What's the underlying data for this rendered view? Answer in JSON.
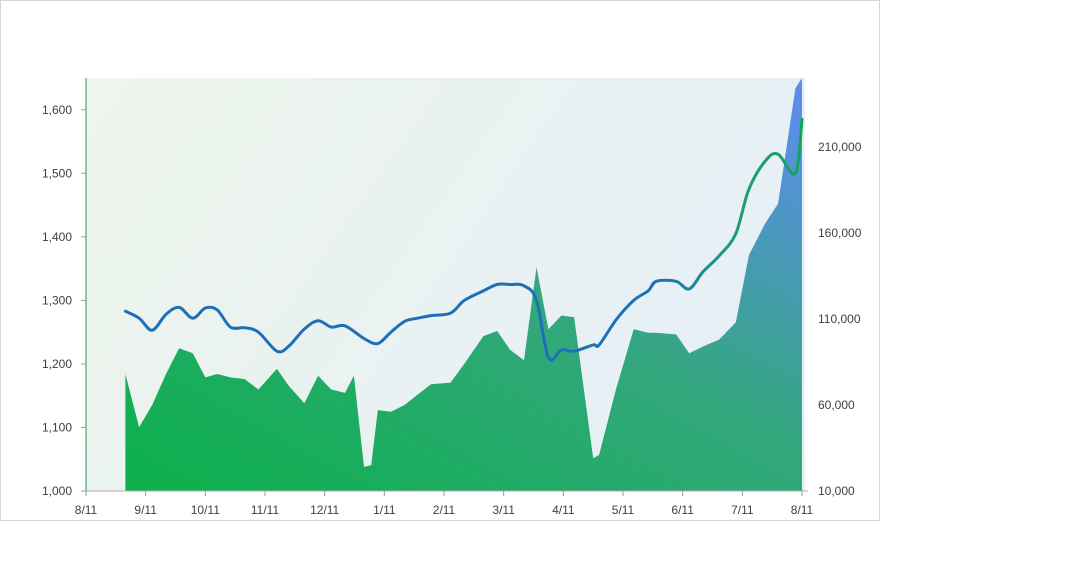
{
  "chart_data": {
    "type": "area",
    "title": "",
    "xlabel": "",
    "ylabel": "",
    "x_ticks": [
      "8/11",
      "9/11",
      "10/11",
      "11/11",
      "12/11",
      "1/11",
      "2/11",
      "3/11",
      "4/11",
      "5/11",
      "6/11",
      "7/11",
      "8/11"
    ],
    "y_left": {
      "min": 1000,
      "max": 1650,
      "ticks": [
        1000,
        1100,
        1200,
        1300,
        1400,
        1500,
        1600
      ],
      "tick_labels": [
        "1,000",
        "1,100",
        "1,200",
        "1,300",
        "1,400",
        "1,500",
        "1,600"
      ]
    },
    "y_right": {
      "min": 10000,
      "max": 250000,
      "ticks": [
        10000,
        60000,
        110000,
        160000,
        210000
      ],
      "tick_labels": [
        "10,000",
        "60,000",
        "110,000",
        "160,000",
        "210,000"
      ]
    },
    "grid": false,
    "series": [
      {
        "kind": "area",
        "axis": "right",
        "x": [
          0.66,
          0.89,
          1.11,
          1.34,
          1.56,
          1.79,
          2.0,
          2.2,
          2.42,
          2.66,
          2.89,
          3.2,
          3.4,
          3.66,
          3.89,
          4.11,
          4.34,
          4.49,
          4.66,
          4.78,
          4.89,
          5.11,
          5.34,
          5.56,
          5.78,
          6.11,
          6.34,
          6.66,
          6.89,
          7.11,
          7.34,
          7.55,
          7.75,
          7.97,
          8.18,
          8.5,
          8.6,
          8.89,
          9.18,
          9.42,
          9.56,
          9.89,
          10.11,
          10.34,
          10.61,
          10.89,
          11.11,
          11.39,
          11.6,
          11.89,
          12.0
        ],
        "values": [
          78000,
          47000,
          60000,
          78000,
          93000,
          90000,
          76000,
          78000,
          76000,
          75000,
          69000,
          81000,
          71000,
          61000,
          77000,
          69000,
          67000,
          77000,
          24000,
          25000,
          57000,
          56000,
          60000,
          66000,
          72000,
          73000,
          84000,
          100000,
          103000,
          92000,
          86000,
          140000,
          104000,
          112000,
          111000,
          29000,
          31000,
          70000,
          104000,
          102000,
          102000,
          101000,
          90000,
          94000,
          98000,
          108000,
          147000,
          166000,
          177000,
          244000,
          250000
        ]
      },
      {
        "kind": "line",
        "axis": "left",
        "x": [
          0.66,
          0.89,
          1.11,
          1.34,
          1.56,
          1.79,
          2.0,
          2.2,
          2.42,
          2.66,
          2.89,
          3.2,
          3.4,
          3.66,
          3.89,
          4.11,
          4.34,
          4.66,
          4.89,
          5.11,
          5.34,
          5.56,
          5.78,
          6.11,
          6.34,
          6.66,
          6.89,
          7.11,
          7.34,
          7.55,
          7.75,
          7.97,
          8.18,
          8.5,
          8.6,
          8.89,
          9.18,
          9.42,
          9.56,
          9.89,
          10.11,
          10.34,
          10.61,
          10.89,
          11.11,
          11.39,
          11.6,
          11.89,
          12.0
        ],
        "values": [
          1283,
          1272,
          1253,
          1278,
          1289,
          1272,
          1288,
          1285,
          1258,
          1257,
          1250,
          1220,
          1228,
          1255,
          1268,
          1258,
          1260,
          1240,
          1232,
          1250,
          1267,
          1272,
          1276,
          1280,
          1300,
          1315,
          1325,
          1325,
          1323,
          1300,
          1210,
          1222,
          1220,
          1230,
          1230,
          1270,
          1300,
          1315,
          1330,
          1330,
          1318,
          1345,
          1370,
          1405,
          1475,
          1520,
          1530,
          1500,
          1585
        ]
      }
    ]
  }
}
